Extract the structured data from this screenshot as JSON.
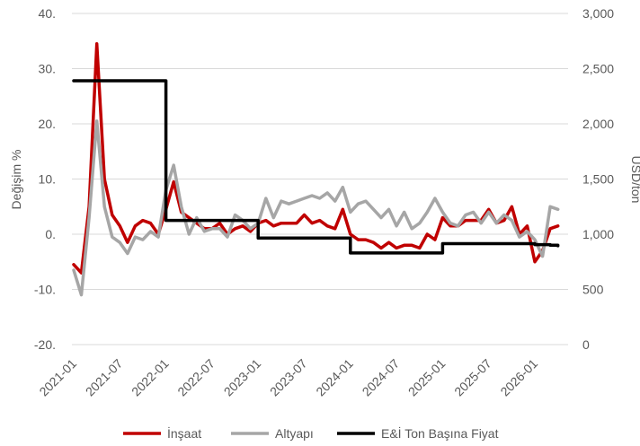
{
  "chart_data": {
    "type": "line",
    "title": "",
    "ylabel_left": "Değişim %",
    "ylabel_right": "USD/ton",
    "ylim_left": [
      -20,
      40
    ],
    "ylim_right": [
      0,
      3000
    ],
    "yticks_left": [
      "40.",
      "30.",
      "20.",
      "10.",
      "0.",
      "-10.",
      "-20."
    ],
    "yticks_right": [
      "3,000",
      "2,500",
      "2,000",
      "1,500",
      "1,000",
      "500",
      "0"
    ],
    "xticks": [
      "2021-01",
      "2021-07",
      "2022-01",
      "2022-07",
      "2023-01",
      "2023-07",
      "2024-01",
      "2024-07",
      "2025-01",
      "2025-07",
      "2026-01"
    ],
    "grid": true,
    "legend_position": "bottom",
    "x_start": "2021-01",
    "x_end": "2026-04",
    "series": [
      {
        "name": "İnşaat",
        "axis": "left",
        "color": "#c00000",
        "values": [
          -5.5,
          -7,
          5,
          34.5,
          10,
          3.5,
          1.5,
          -1.5,
          1.5,
          2.5,
          2,
          0,
          4.5,
          9.5,
          4,
          3,
          2,
          1,
          1,
          2,
          0,
          1,
          1.5,
          0.5,
          2,
          2.5,
          1.5,
          2,
          2,
          2,
          3.5,
          2,
          2.5,
          1.5,
          1,
          4.5,
          0,
          -1,
          -1,
          -1.5,
          -2.5,
          -1.5,
          -2.5,
          -2,
          -2,
          -2.5,
          0,
          -1,
          3,
          1.5,
          1.5,
          2.5,
          2.5,
          2.5,
          4.5,
          2,
          2.5,
          5,
          0,
          1.5,
          -5,
          -3,
          1,
          1.5
        ]
      },
      {
        "name": "Altyapı",
        "axis": "left",
        "color": "#a6a6a6",
        "values": [
          -6.5,
          -11,
          3,
          20.5,
          5,
          -0.5,
          -1.5,
          -3.5,
          -0.5,
          -1,
          0.5,
          -0.5,
          8,
          12.5,
          5,
          0,
          3,
          0.5,
          1,
          1,
          -0.5,
          3.5,
          2.5,
          1,
          2,
          6.5,
          3,
          6,
          5.5,
          6,
          6.5,
          7,
          6.5,
          7.5,
          6,
          8.5,
          4,
          5.5,
          6,
          4.5,
          3,
          4.5,
          1.5,
          4,
          1,
          2,
          4,
          6.5,
          4,
          2,
          1.5,
          3.5,
          4,
          2,
          4,
          2,
          3.5,
          2.5,
          -0.5,
          0.5,
          -1,
          -4,
          5,
          4.5
        ]
      },
      {
        "name": "E&İ Ton Başına Fiyat",
        "axis": "right",
        "color": "#000000",
        "values": [
          2390,
          2390,
          2390,
          2390,
          2390,
          2390,
          2390,
          2390,
          2390,
          2390,
          2390,
          2390,
          1125,
          1125,
          1125,
          1125,
          1125,
          1125,
          1125,
          1125,
          1125,
          1125,
          1125,
          1125,
          965,
          965,
          965,
          965,
          965,
          965,
          965,
          965,
          965,
          965,
          965,
          965,
          830,
          830,
          830,
          830,
          830,
          830,
          830,
          830,
          830,
          830,
          830,
          830,
          915,
          915,
          915,
          915,
          915,
          915,
          915,
          915,
          915,
          915,
          915,
          915,
          905,
          905,
          900,
          895
        ]
      }
    ]
  }
}
